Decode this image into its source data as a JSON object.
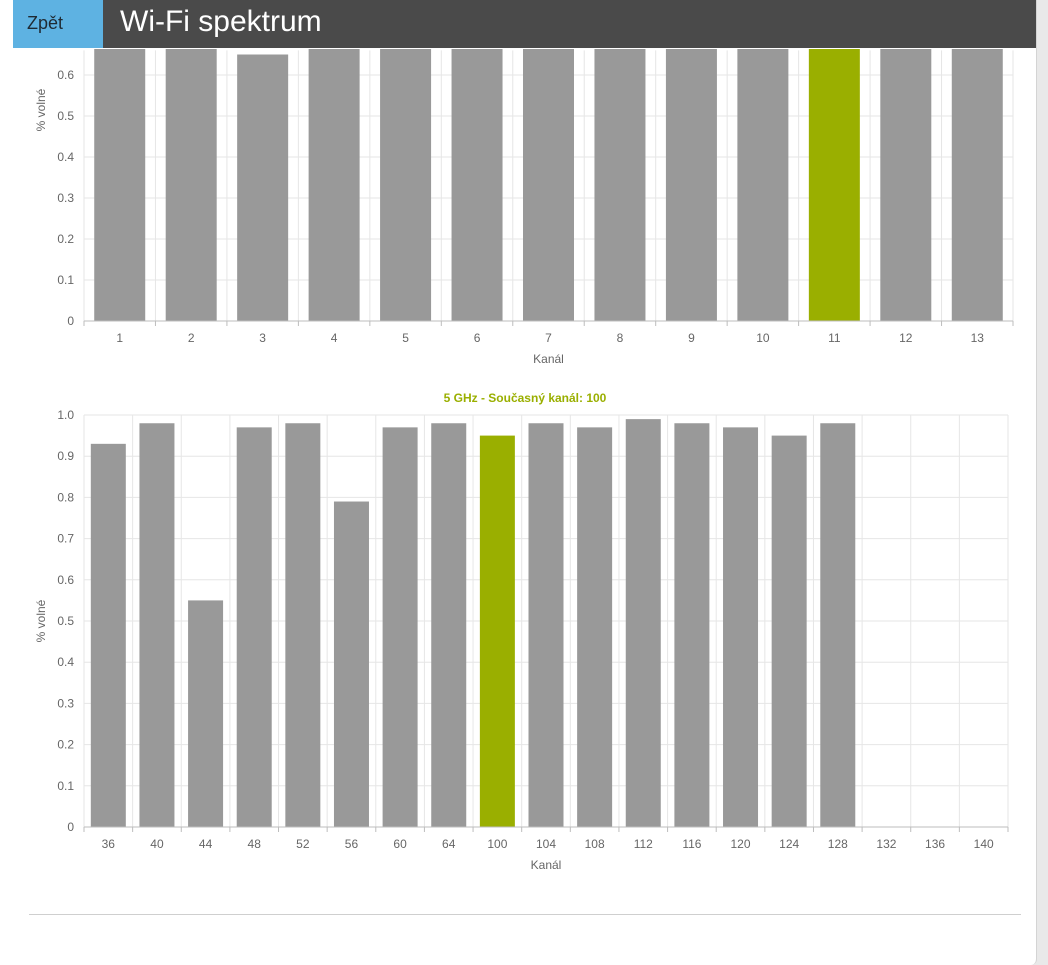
{
  "header": {
    "back_label": "Zpět",
    "title": "Wi-Fi spektrum"
  },
  "colors": {
    "bar": "#999999",
    "current": "#9aaf00",
    "grid": "#e6e6e6",
    "axis": "#bdbdbd"
  },
  "chart_data": [
    {
      "type": "bar",
      "title": "",
      "xlabel": "Kanál",
      "ylabel": "% volné",
      "categories": [
        "1",
        "2",
        "3",
        "4",
        "5",
        "6",
        "7",
        "8",
        "9",
        "10",
        "11",
        "12",
        "13"
      ],
      "values": [
        1,
        1,
        0.65,
        1,
        1,
        1,
        1,
        1,
        1,
        1,
        1,
        1,
        1
      ],
      "highlight": "11",
      "yticks": [
        "0",
        "0.1",
        "0.2",
        "0.3",
        "0.4",
        "0.5",
        "0.6"
      ],
      "ylim": [
        0,
        0.66
      ],
      "grid": true
    },
    {
      "type": "bar",
      "title": "5 GHz - Současný kanál: 100",
      "xlabel": "Kanál",
      "ylabel": "% volné",
      "categories": [
        "36",
        "40",
        "44",
        "48",
        "52",
        "56",
        "60",
        "64",
        "100",
        "104",
        "108",
        "112",
        "116",
        "120",
        "124",
        "128",
        "132",
        "136",
        "140"
      ],
      "values": [
        0.93,
        0.98,
        0.55,
        0.97,
        0.98,
        0.79,
        0.97,
        0.98,
        0.95,
        0.98,
        0.97,
        0.99,
        0.98,
        0.97,
        0.95,
        0.98,
        0,
        0,
        0
      ],
      "highlight": "100",
      "yticks": [
        "0",
        "0.1",
        "0.2",
        "0.3",
        "0.4",
        "0.5",
        "0.6",
        "0.7",
        "0.8",
        "0.9",
        "1.0"
      ],
      "ylim": [
        0,
        1.0
      ],
      "grid": true
    }
  ]
}
